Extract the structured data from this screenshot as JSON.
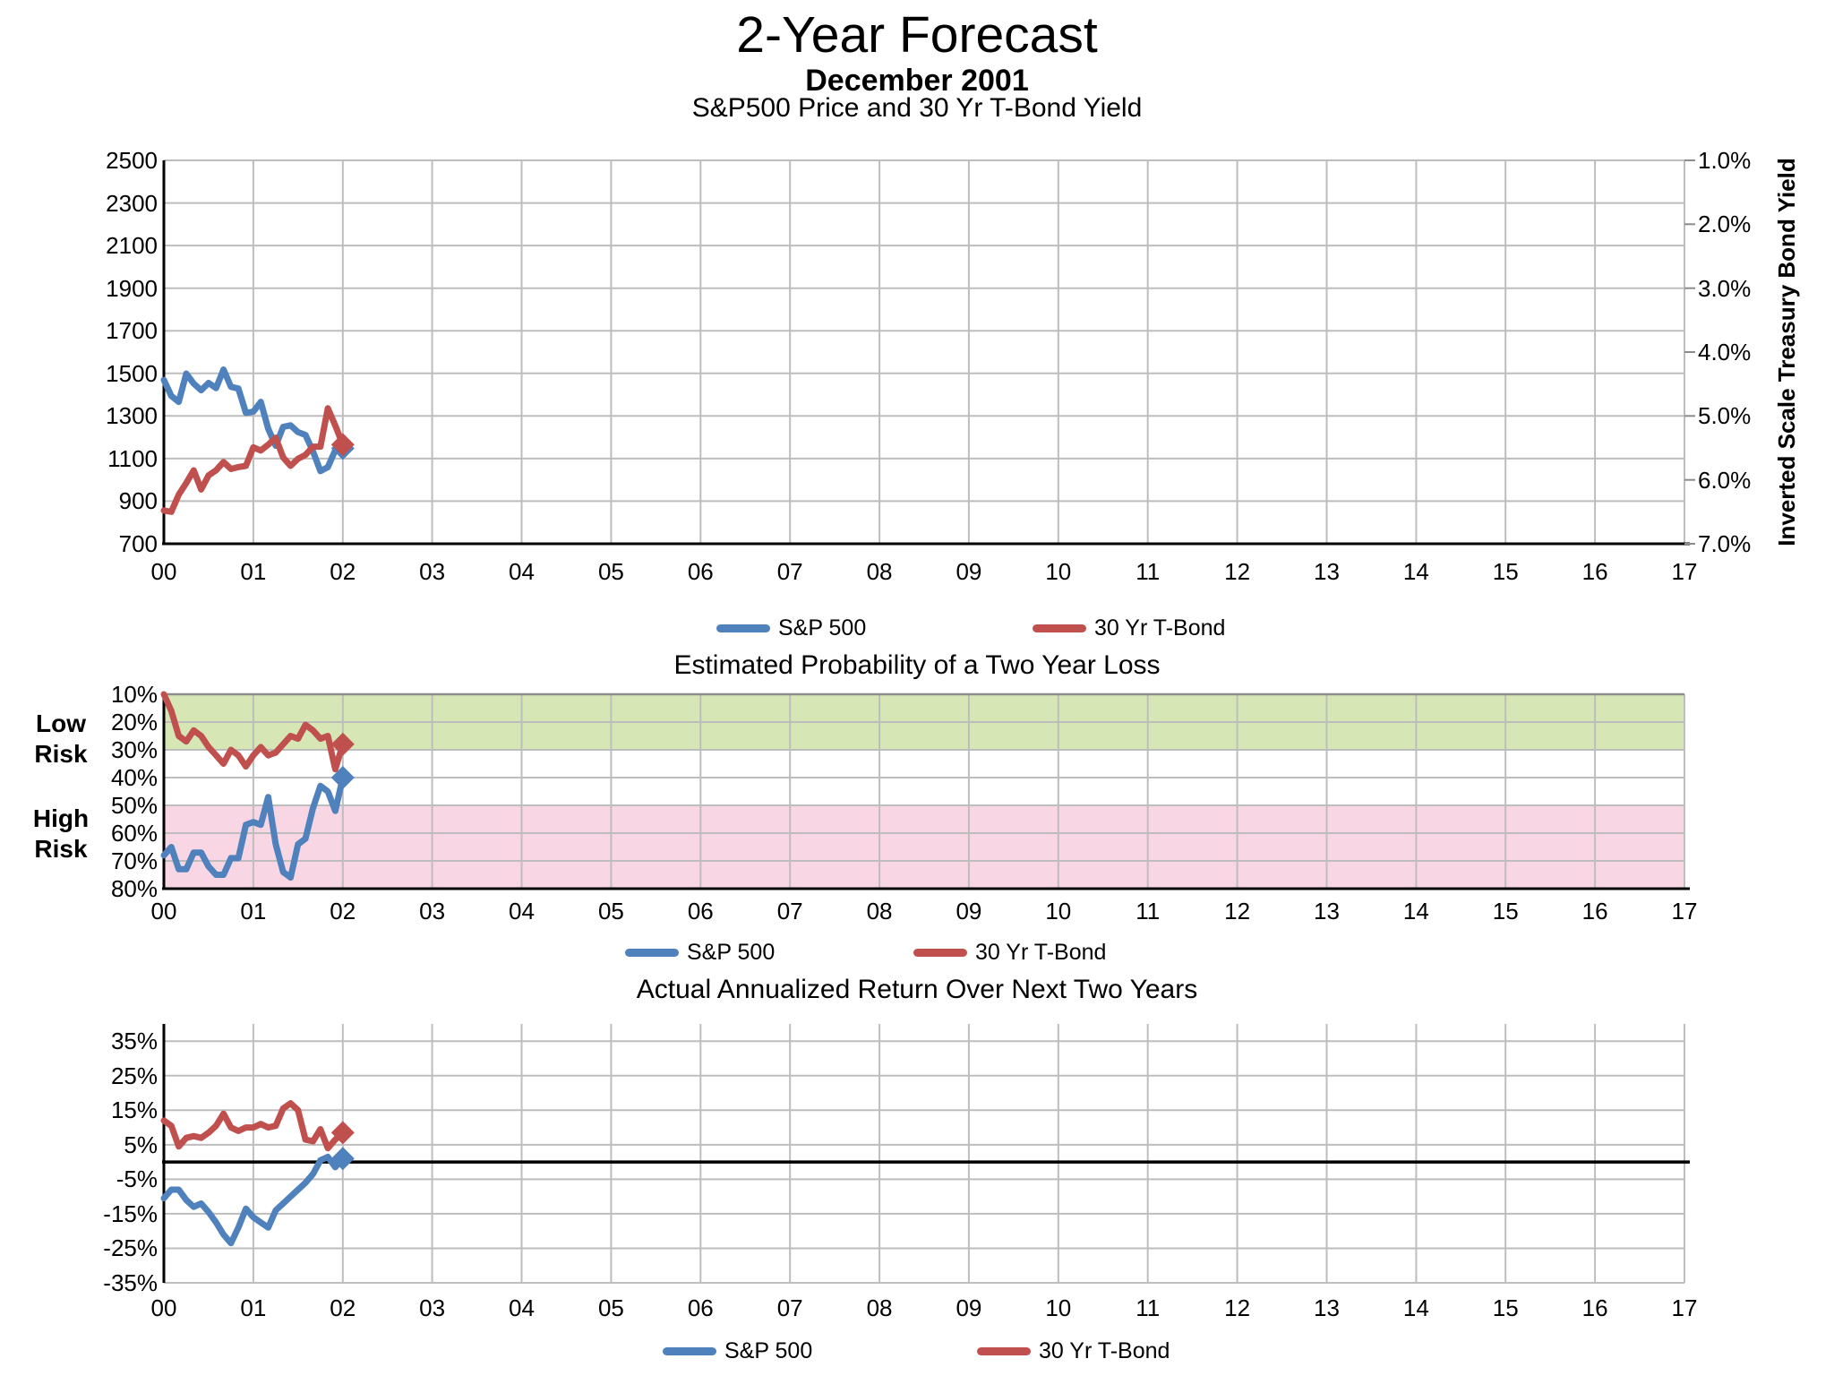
{
  "header": {
    "title": "2-Year Forecast",
    "subtitle": "December 2001"
  },
  "colors": {
    "sp500": "#4F81BD",
    "tbond": "#C0504D",
    "low_risk_band": "#D7E6B5",
    "high_risk_band": "#F9D6E3",
    "gridline": "#BDBDBD",
    "border_gray": "#8C8C8C",
    "axis": "#000000"
  },
  "chart_data": [
    {
      "type": "line",
      "title": "S&P500 Price and 30 Yr T-Bond Yield",
      "x_note": "monthly points from Dec 1999 (x=0) to Dec 2001 (x=2); x axis in years 2000-2017",
      "xlim": [
        0,
        17
      ],
      "x_tick_labels": [
        "00",
        "01",
        "02",
        "03",
        "04",
        "05",
        "06",
        "07",
        "08",
        "09",
        "10",
        "11",
        "12",
        "13",
        "14",
        "15",
        "16",
        "17"
      ],
      "ylim_left": [
        700,
        2500
      ],
      "yticks_left": [
        2500,
        2300,
        2100,
        1900,
        1700,
        1500,
        1300,
        1100,
        900,
        700
      ],
      "right_axis": {
        "title": "Inverted Scale Treasury Bond Yield",
        "tick_labels": [
          "1.0%",
          "2.0%",
          "3.0%",
          "4.0%",
          "5.0%",
          "6.0%",
          "7.0%"
        ],
        "inverted": true,
        "alignment": "1.0% aligns with 2500 on left scale, 7.0% aligns with 700 (300 price units per 1%)"
      },
      "end_marker": "diamond at final point (Dec 2001)",
      "series": [
        {
          "name": "S&P 500",
          "color_key": "sp500",
          "unit": "index price",
          "values": [
            1469,
            1394,
            1366,
            1499,
            1452,
            1421,
            1455,
            1431,
            1518,
            1437,
            1429,
            1315,
            1320,
            1366,
            1240,
            1160,
            1249,
            1256,
            1224,
            1211,
            1134,
            1041,
            1060,
            1139,
            1148
          ]
        },
        {
          "name": "30 Yr T-Bond",
          "color_key": "tbond",
          "unit": "% yield (inverted right scale)",
          "values": [
            6.48,
            6.5,
            6.23,
            6.05,
            5.85,
            6.15,
            5.93,
            5.85,
            5.72,
            5.83,
            5.8,
            5.78,
            5.49,
            5.54,
            5.45,
            5.34,
            5.65,
            5.78,
            5.67,
            5.61,
            5.48,
            5.48,
            4.88,
            5.15,
            5.45
          ]
        }
      ]
    },
    {
      "type": "line",
      "title": "Estimated Probability of a Two Year Loss",
      "xlim": [
        0,
        17
      ],
      "x_tick_labels": [
        "00",
        "01",
        "02",
        "03",
        "04",
        "05",
        "06",
        "07",
        "08",
        "09",
        "10",
        "11",
        "12",
        "13",
        "14",
        "15",
        "16",
        "17"
      ],
      "ylim": [
        10,
        80
      ],
      "y_inverted": true,
      "yticks": [
        "10%",
        "20%",
        "30%",
        "40%",
        "50%",
        "60%",
        "70%",
        "80%"
      ],
      "bands": [
        {
          "label": "Low Risk",
          "range_pct": [
            10,
            30
          ],
          "color_key": "low_risk_band"
        },
        {
          "label": "High Risk",
          "range_pct": [
            50,
            80
          ],
          "color_key": "high_risk_band"
        }
      ],
      "end_marker": "diamond at final point (Dec 2001)",
      "series": [
        {
          "name": "S&P 500",
          "color_key": "sp500",
          "unit": "% probability",
          "values": [
            68,
            65,
            73,
            73,
            67,
            67,
            72,
            75,
            75,
            69,
            69,
            57,
            56,
            57,
            47,
            64,
            74,
            76,
            64,
            62,
            51,
            43,
            45,
            52,
            40
          ]
        },
        {
          "name": "30 Yr T-Bond",
          "color_key": "tbond",
          "unit": "% probability",
          "values": [
            10,
            16,
            25,
            27,
            23,
            25,
            29,
            32,
            35,
            30,
            32,
            36,
            32,
            29,
            32,
            31,
            28,
            25,
            26,
            21,
            23,
            26,
            25,
            37,
            28
          ]
        }
      ]
    },
    {
      "type": "line",
      "title": "Actual Annualized Return Over Next Two Years",
      "xlim": [
        0,
        17
      ],
      "x_tick_labels": [
        "00",
        "01",
        "02",
        "03",
        "04",
        "05",
        "06",
        "07",
        "08",
        "09",
        "10",
        "11",
        "12",
        "13",
        "14",
        "15",
        "16",
        "17"
      ],
      "ylim": [
        -35,
        40
      ],
      "yticks": [
        "35%",
        "25%",
        "15%",
        "5%",
        "-5%",
        "-15%",
        "-25%",
        "-35%"
      ],
      "zero_line": true,
      "end_marker": "diamond at final point (Dec 2001)",
      "series": [
        {
          "name": "S&P 500",
          "color_key": "sp500",
          "unit": "% annualized return",
          "values": [
            -10.5,
            -8,
            -8,
            -11,
            -13,
            -12,
            -14.5,
            -17.5,
            -21,
            -23.5,
            -19,
            -13.5,
            -16,
            -17.5,
            -19,
            -14,
            -12,
            -10,
            -8,
            -6,
            -3.5,
            0.5,
            1.5,
            -1.5,
            1
          ]
        },
        {
          "name": "30 Yr T-Bond",
          "color_key": "tbond",
          "unit": "% annualized return",
          "values": [
            12,
            10.5,
            4.5,
            7,
            7.5,
            7,
            8.5,
            10.5,
            14,
            10,
            9,
            10,
            10,
            11,
            10,
            10.5,
            15.5,
            17,
            15,
            6.5,
            6,
            9.5,
            4,
            6.5,
            8.5
          ]
        }
      ]
    }
  ]
}
